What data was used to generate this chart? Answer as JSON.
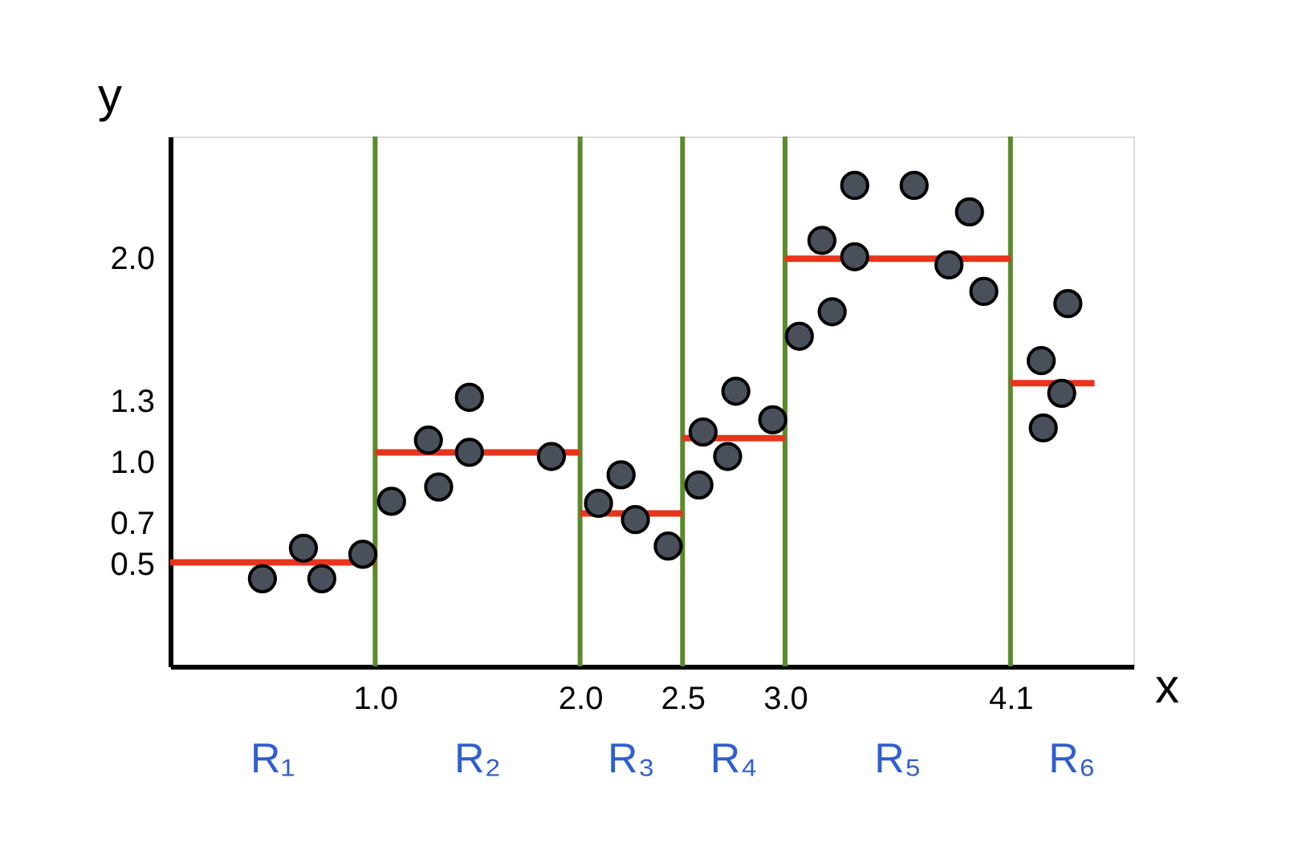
{
  "chart_data": {
    "type": "scatter",
    "xlabel": "x",
    "ylabel": "y",
    "xlim": [
      0,
      4.7
    ],
    "ylim": [
      0,
      2.6
    ],
    "xticks": [
      {
        "value": 1,
        "label": "1.0"
      },
      {
        "value": 2,
        "label": "2.0"
      },
      2.5,
      {
        "value": 3,
        "label": "3.0"
      },
      4.1
    ],
    "yticks": [
      0.5,
      0.7,
      {
        "value": 1,
        "label": "1.0"
      },
      1.3,
      {
        "value": 2,
        "label": "2.0"
      }
    ],
    "grid": false,
    "marker": "circle",
    "series": [
      {
        "color": "#4a505a",
        "x": [
          0.45,
          0.65,
          0.74,
          0.94,
          1.08,
          1.26,
          1.31,
          1.46,
          1.46,
          1.86,
          2.09,
          2.2,
          2.27,
          2.43,
          2.58,
          2.6,
          2.72,
          2.76,
          2.94,
          3.07,
          3.18,
          3.23,
          3.34,
          3.34,
          3.63,
          3.8,
          3.9,
          3.97,
          4.25,
          4.26,
          4.35,
          4.38
        ],
        "values": [
          0.43,
          0.58,
          0.43,
          0.55,
          0.81,
          1.11,
          0.88,
          1.32,
          1.05,
          1.03,
          0.8,
          0.94,
          0.72,
          0.59,
          0.89,
          1.15,
          1.03,
          1.35,
          1.21,
          1.62,
          2.09,
          1.74,
          2.36,
          2.01,
          2.36,
          1.97,
          2.23,
          1.84,
          1.5,
          1.17,
          1.34,
          1.78
        ]
      },
      {
        "type": "line",
        "color": "#e8341c",
        "marker": "none",
        "line_style": "solid",
        "x": [
          0,
          1
        ],
        "values": [
          0.51,
          0.51
        ]
      },
      {
        "type": "line",
        "color": "#e8341c",
        "marker": "none",
        "line_style": "solid",
        "x": [
          1,
          2
        ],
        "values": [
          1.05,
          1.05
        ]
      },
      {
        "type": "line",
        "color": "#e8341c",
        "marker": "none",
        "line_style": "solid",
        "x": [
          2,
          2.5
        ],
        "values": [
          0.75,
          0.75
        ]
      },
      {
        "type": "line",
        "color": "#e8341c",
        "marker": "none",
        "line_style": "solid",
        "x": [
          2.5,
          3
        ],
        "values": [
          1.12,
          1.12
        ]
      },
      {
        "type": "line",
        "color": "#e8341c",
        "marker": "none",
        "line_style": "solid",
        "x": [
          3,
          4.1
        ],
        "values": [
          2.0,
          2.0
        ]
      },
      {
        "type": "line",
        "color": "#e8341c",
        "marker": "none",
        "line_style": "solid",
        "x": [
          4.1,
          4.51
        ],
        "values": [
          1.39,
          1.39
        ]
      }
    ],
    "ref_lines": [
      {
        "axis": "x",
        "value": 1,
        "color": "#5a8a2a"
      },
      {
        "axis": "x",
        "value": 2,
        "color": "#5a8a2a"
      },
      {
        "axis": "x",
        "value": 2.5,
        "color": "#5a8a2a"
      },
      {
        "axis": "x",
        "value": 3,
        "color": "#5a8a2a"
      },
      {
        "axis": "x",
        "value": 4.1,
        "color": "#5a8a2a"
      }
    ],
    "annotations": [
      "R₁",
      "R₂",
      "R₃",
      "R₄",
      "R₅",
      "R₆"
    ]
  }
}
